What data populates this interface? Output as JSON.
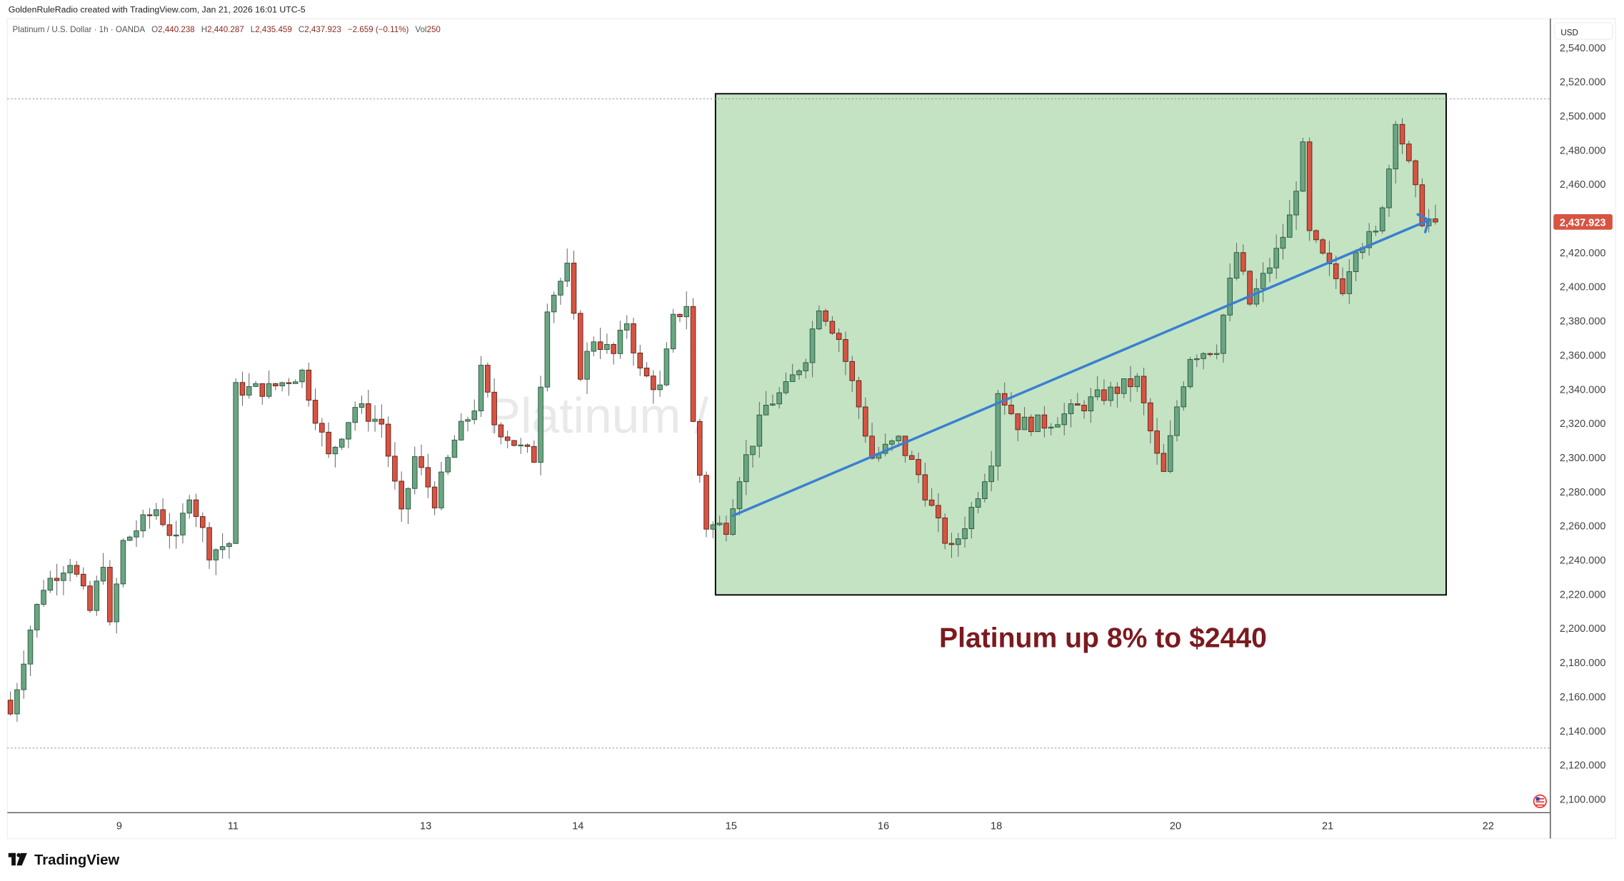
{
  "header": {
    "credit": "GoldenRuleRadio created with TradingView.com, Jan 21, 2026 16:01 UTC-5",
    "symbol": "Platinum / U.S. Dollar · 1h · OANDA",
    "o_label": "O",
    "o_value": "2,440.238",
    "h_label": "H",
    "h_value": "2,440.287",
    "l_label": "L",
    "l_value": "2,435.459",
    "c_label": "C",
    "c_value": "2,437.923",
    "change": "−2.659 (−0.11%)",
    "vol_label": "Vol",
    "vol_value": "250"
  },
  "watermark": "Platinum / U.S. Dollar",
  "annotation": "Platinum up 8% to $2440",
  "footer": {
    "logo_text": "TradingView"
  },
  "colors": {
    "up": "#6ba583",
    "up_border": "#225437",
    "down": "#d75442",
    "down_border": "#5b1a13",
    "box": "#c3e3c3",
    "arrow": "#3a7fd0",
    "annotation": "#7b1a1f"
  },
  "chart_data": {
    "type": "candlestick",
    "title": "Platinum / U.S. Dollar · 1h · OANDA",
    "currency": "USD",
    "ylim": [
      2090,
      2550
    ],
    "yticks": [
      2100,
      2120,
      2140,
      2160,
      2180,
      2200,
      2220,
      2240,
      2260,
      2280,
      2300,
      2320,
      2340,
      2360,
      2380,
      2400,
      2420,
      2440,
      2460,
      2480,
      2500,
      2520,
      2540
    ],
    "ytick_labels": [
      "2,100.000",
      "2,120.000",
      "2,140.000",
      "2,160.000",
      "2,180.000",
      "2,200.000",
      "2,220.000",
      "2,240.000",
      "2,260.000",
      "2,280.000",
      "2,300.000",
      "2,320.000",
      "2,340.000",
      "2,360.000",
      "2,380.000",
      "2,400.000",
      "2,420.000",
      "2,440.000",
      "2,460.000",
      "2,480.000",
      "2,500.000",
      "2,520.000",
      "2,540.000"
    ],
    "xtick_labels": [
      "9",
      "11",
      "13",
      "14",
      "15",
      "16",
      "18",
      "20",
      "21",
      "22"
    ],
    "last_price": 2437.923,
    "last_price_label": "2,437.923",
    "close_anchors_by_hour": [
      [
        0,
        2150
      ],
      [
        3,
        2200
      ],
      [
        5,
        2225
      ],
      [
        9,
        2240
      ],
      [
        12,
        2210
      ],
      [
        14,
        2240
      ],
      [
        15,
        2200
      ],
      [
        17,
        2250
      ],
      [
        22,
        2270
      ],
      [
        25,
        2250
      ],
      [
        27,
        2280
      ],
      [
        30,
        2245
      ],
      [
        33,
        2250
      ],
      [
        34,
        2340
      ],
      [
        39,
        2340
      ],
      [
        44,
        2350
      ],
      [
        48,
        2300
      ],
      [
        52,
        2330
      ],
      [
        56,
        2320
      ],
      [
        59,
        2265
      ],
      [
        61,
        2300
      ],
      [
        64,
        2275
      ],
      [
        67,
        2310
      ],
      [
        70,
        2330
      ],
      [
        71,
        2350
      ],
      [
        73,
        2320
      ],
      [
        77,
        2305
      ],
      [
        79,
        2300
      ],
      [
        81,
        2390
      ],
      [
        84,
        2410
      ],
      [
        86,
        2350
      ],
      [
        88,
        2370
      ],
      [
        91,
        2360
      ],
      [
        93,
        2380
      ],
      [
        95,
        2350
      ],
      [
        98,
        2340
      ],
      [
        100,
        2380
      ],
      [
        102,
        2390
      ],
      [
        103,
        2320
      ],
      [
        105,
        2260
      ],
      [
        108,
        2260
      ],
      [
        110,
        2290
      ],
      [
        114,
        2330
      ],
      [
        117,
        2340
      ],
      [
        120,
        2360
      ],
      [
        122,
        2390
      ],
      [
        125,
        2370
      ],
      [
        128,
        2330
      ],
      [
        130,
        2300
      ],
      [
        134,
        2310
      ],
      [
        137,
        2290
      ],
      [
        140,
        2260
      ],
      [
        142,
        2245
      ],
      [
        145,
        2270
      ],
      [
        148,
        2300
      ],
      [
        149,
        2340
      ],
      [
        152,
        2320
      ],
      [
        156,
        2320
      ],
      [
        159,
        2325
      ],
      [
        164,
        2335
      ],
      [
        167,
        2340
      ],
      [
        170,
        2345
      ],
      [
        173,
        2300
      ],
      [
        174,
        2290
      ],
      [
        176,
        2330
      ],
      [
        178,
        2360
      ],
      [
        182,
        2365
      ],
      [
        185,
        2420
      ],
      [
        187,
        2390
      ],
      [
        191,
        2420
      ],
      [
        193,
        2440
      ],
      [
        195,
        2480
      ],
      [
        196,
        2430
      ],
      [
        199,
        2410
      ],
      [
        201,
        2400
      ],
      [
        203,
        2425
      ],
      [
        206,
        2430
      ],
      [
        208,
        2470
      ],
      [
        209,
        2500
      ],
      [
        211,
        2470
      ],
      [
        213,
        2440
      ],
      [
        215,
        2437.923
      ]
    ],
    "range_high": 2510,
    "range_low": 2130,
    "highlight_box": {
      "start_hour": 107,
      "end_hour": 216,
      "price_top": 2513,
      "price_bottom": 2219.6
    },
    "trend_arrow": {
      "from_hour": 109,
      "from_price": 2266,
      "to_hour": 214,
      "to_price": 2439
    }
  }
}
